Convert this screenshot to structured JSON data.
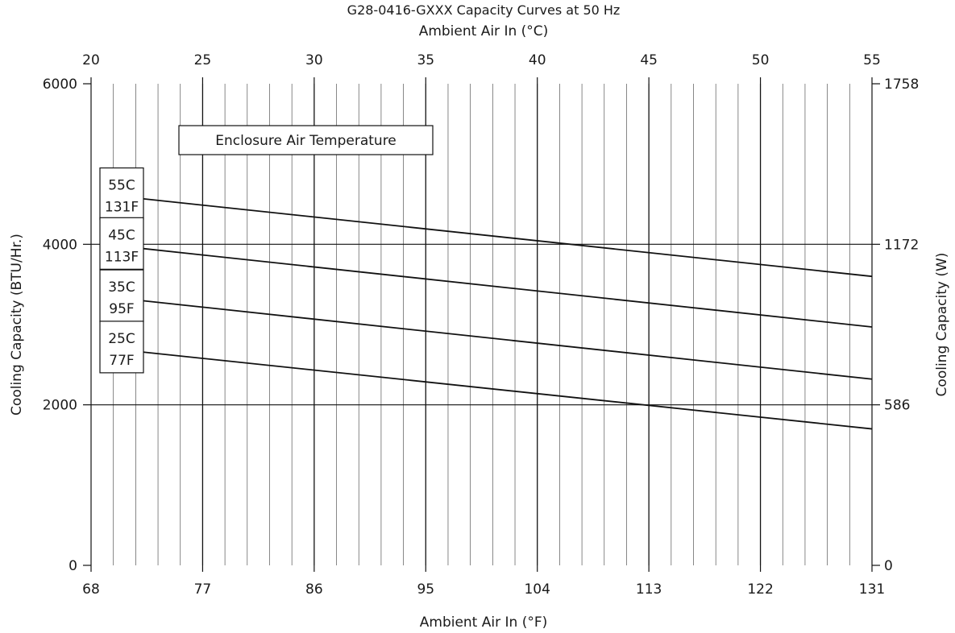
{
  "chart_data": {
    "type": "line",
    "title": "G28-0416-GXXX Capacity Curves at 50 Hz",
    "top_axis": {
      "label": "Ambient Air In (°C)",
      "ticks": [
        20,
        25,
        30,
        35,
        40,
        45,
        50,
        55
      ],
      "range": [
        20,
        55
      ]
    },
    "bottom_axis": {
      "label": "Ambient Air In (°F)",
      "ticks": [
        68,
        77,
        86,
        95,
        104,
        113,
        122,
        131
      ],
      "range": [
        68,
        131
      ]
    },
    "left_axis": {
      "label": "Cooling Capacity (BTU/Hr.)",
      "ticks": [
        0,
        2000,
        4000,
        6000
      ],
      "range": [
        0,
        6000
      ]
    },
    "right_axis": {
      "label": "Cooling Capacity (W)",
      "ticks": [
        {
          "value": 0,
          "label": "0"
        },
        {
          "value": 2000,
          "label": "586"
        },
        {
          "value": 4000,
          "label": "1172"
        },
        {
          "value": 6000,
          "label": "1758"
        }
      ]
    },
    "grid": true,
    "legend_title": "Enclosure Air Temperature",
    "series": [
      {
        "name": "55C 131F",
        "label_line1": "55C",
        "label_line2": "131F",
        "x": [
          72,
          131
        ],
        "y": [
          4570,
          3600
        ]
      },
      {
        "name": "45C 113F",
        "label_line1": "45C",
        "label_line2": "113F",
        "x": [
          72,
          131
        ],
        "y": [
          3950,
          2970
        ]
      },
      {
        "name": "35C 95F",
        "label_line1": "35C",
        "label_line2": "95F",
        "x": [
          72,
          131
        ],
        "y": [
          3300,
          2320
        ]
      },
      {
        "name": "25C 77F",
        "label_line1": "25C",
        "label_line2": "77F",
        "x": [
          72,
          131
        ],
        "y": [
          2660,
          1700
        ]
      }
    ]
  }
}
